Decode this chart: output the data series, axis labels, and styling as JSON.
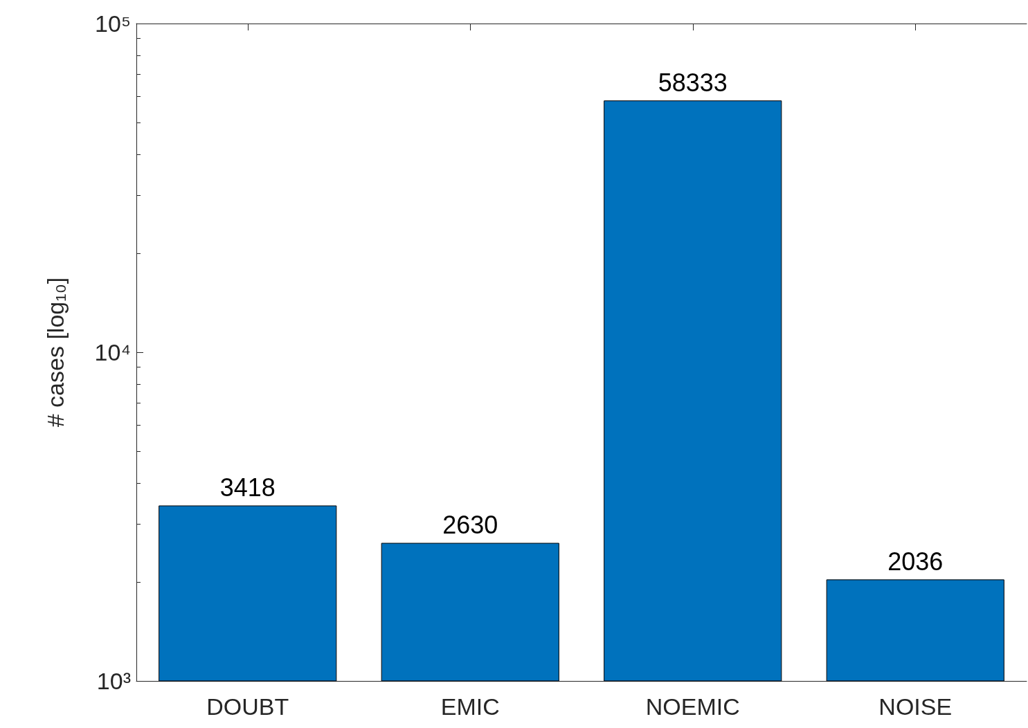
{
  "chart_data": {
    "type": "bar",
    "ylabel": "# cases [log₁₀]",
    "categories": [
      "DOUBT",
      "EMIC",
      "NOEMIC",
      "NOISE"
    ],
    "values": [
      3418,
      2630,
      58333,
      2036
    ],
    "color": "#0072bd",
    "ylim": [
      1000,
      100000
    ],
    "yticks": [
      {
        "value": 1000,
        "label": "10³"
      },
      {
        "value": 10000,
        "label": "10⁴"
      },
      {
        "value": 100000,
        "label": "10⁵"
      }
    ],
    "log": true,
    "data_labels": true
  }
}
